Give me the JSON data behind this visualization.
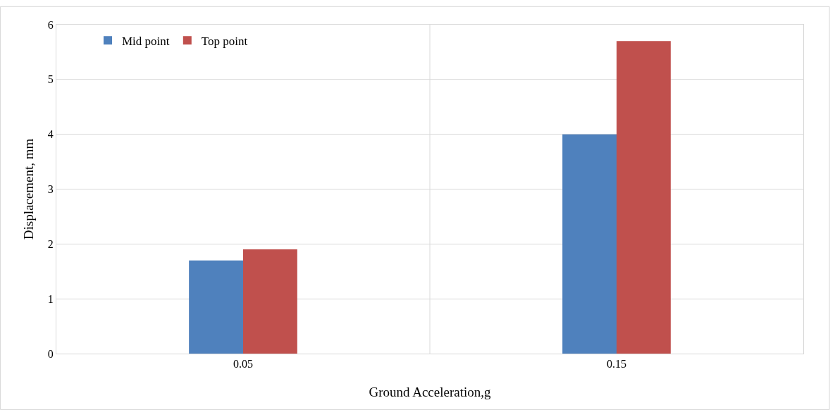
{
  "chart_data": {
    "type": "bar",
    "xlabel": "Ground Acceleration,g",
    "ylabel": "Displacement, mm",
    "categories": [
      "0.05",
      "0.15"
    ],
    "series": [
      {
        "name": "Mid point",
        "color": "#4f81bd",
        "values": [
          1.7,
          4.0
        ]
      },
      {
        "name": "Top point",
        "color": "#c0504d",
        "values": [
          1.9,
          5.7
        ]
      }
    ],
    "ylim": [
      0,
      6
    ],
    "yticks": [
      0,
      1,
      2,
      3,
      4,
      5,
      6
    ],
    "grid": true,
    "legend": "top left"
  }
}
